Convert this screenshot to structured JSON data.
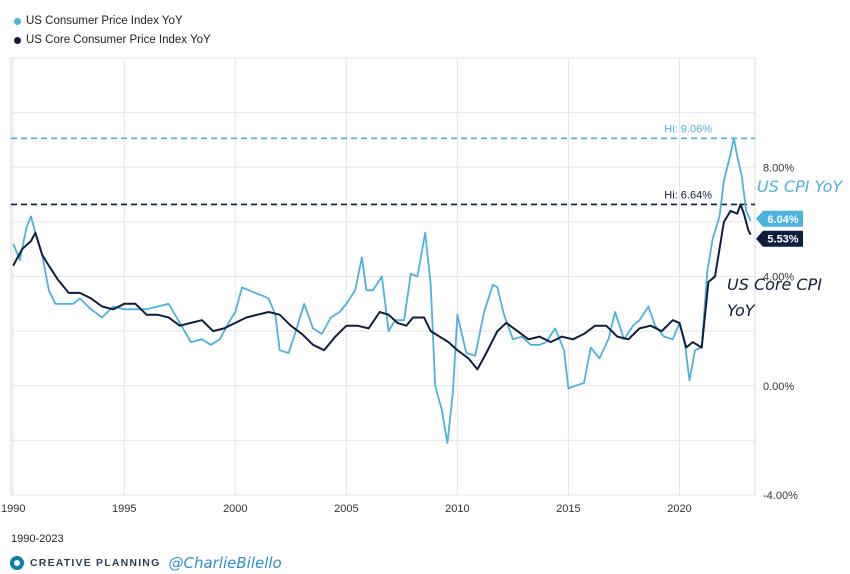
{
  "legend": {
    "cpi_label": "US Consumer Price Index YoY",
    "core_label": "US Core Consumer Price Index YoY"
  },
  "colors": {
    "cpi": "#4cb3de",
    "core": "#0f1f3d",
    "grid": "#e6e6e6",
    "axis_text": "#333333"
  },
  "range_label": "1990-2023",
  "footer": {
    "brand": "CREATIVE PLANNING",
    "handle": "@CharlieBilello"
  },
  "chart_data": {
    "type": "line",
    "title": "",
    "xlabel": "",
    "ylabel": "",
    "xlim": [
      1989.9,
      2023.4
    ],
    "ylim": [
      -4,
      12
    ],
    "x_ticks": [
      1990,
      1995,
      2000,
      2005,
      2010,
      2015,
      2020
    ],
    "y_ticks": [
      {
        "value": -4,
        "label": "-4.00%"
      },
      {
        "value": 0,
        "label": "0.00%"
      },
      {
        "value": 4,
        "label": "4.00%"
      },
      {
        "value": 8,
        "label": "8.00%"
      }
    ],
    "series": [
      {
        "name": "US Consumer Price Index YoY",
        "x": [
          1990.0,
          1990.3,
          1990.6,
          1990.8,
          1991.0,
          1991.3,
          1991.6,
          1991.9,
          1992.3,
          1992.7,
          1993.0,
          1993.5,
          1994.0,
          1994.5,
          1995.0,
          1995.5,
          1996.0,
          1996.5,
          1997.0,
          1997.5,
          1998.0,
          1998.5,
          1998.9,
          1999.3,
          1999.7,
          2000.0,
          2000.3,
          2000.6,
          2000.9,
          2001.2,
          2001.5,
          2001.8,
          2002.0,
          2002.4,
          2002.8,
          2003.1,
          2003.5,
          2003.9,
          2004.3,
          2004.7,
          2005.0,
          2005.4,
          2005.7,
          2005.9,
          2006.2,
          2006.6,
          2006.9,
          2007.2,
          2007.6,
          2007.9,
          2008.2,
          2008.55,
          2008.8,
          2009.0,
          2009.3,
          2009.55,
          2009.8,
          2010.0,
          2010.4,
          2010.8,
          2011.2,
          2011.6,
          2011.8,
          2012.1,
          2012.5,
          2012.9,
          2013.3,
          2013.7,
          2014.0,
          2014.4,
          2014.8,
          2015.0,
          2015.3,
          2015.7,
          2016.0,
          2016.4,
          2016.8,
          2017.1,
          2017.5,
          2017.9,
          2018.2,
          2018.6,
          2018.9,
          2019.3,
          2019.7,
          2020.0,
          2020.25,
          2020.45,
          2020.7,
          2021.0,
          2021.25,
          2021.5,
          2021.8,
          2022.0,
          2022.3,
          2022.45,
          2022.6,
          2022.8,
          2023.0,
          2023.2
        ],
        "values": [
          5.2,
          4.6,
          5.8,
          6.2,
          5.6,
          4.8,
          3.5,
          3.0,
          3.0,
          3.0,
          3.2,
          2.8,
          2.5,
          2.9,
          2.8,
          2.8,
          2.8,
          2.9,
          3.0,
          2.3,
          1.6,
          1.7,
          1.5,
          1.7,
          2.3,
          2.7,
          3.6,
          3.5,
          3.4,
          3.3,
          3.2,
          2.6,
          1.3,
          1.2,
          2.2,
          3.0,
          2.1,
          1.9,
          2.5,
          2.7,
          3.0,
          3.5,
          4.7,
          3.5,
          3.5,
          4.0,
          2.0,
          2.4,
          2.4,
          4.1,
          4.0,
          5.6,
          3.7,
          0.0,
          -0.9,
          -2.1,
          -0.2,
          2.6,
          1.2,
          1.1,
          2.7,
          3.7,
          3.6,
          2.6,
          1.7,
          1.8,
          1.5,
          1.5,
          1.6,
          2.1,
          1.3,
          -0.1,
          0.0,
          0.1,
          1.4,
          1.0,
          1.7,
          2.7,
          1.7,
          2.2,
          2.4,
          2.9,
          2.2,
          1.8,
          1.7,
          2.3,
          1.5,
          0.2,
          1.3,
          1.4,
          4.2,
          5.4,
          6.2,
          7.5,
          8.5,
          9.06,
          8.4,
          7.7,
          6.4,
          6.04
        ]
      },
      {
        "name": "US Core Consumer Price Index YoY",
        "x": [
          1990.0,
          1990.4,
          1990.8,
          1991.0,
          1991.3,
          1991.6,
          1992.0,
          1992.5,
          1993.0,
          1993.5,
          1994.0,
          1994.5,
          1995.0,
          1995.5,
          1996.0,
          1996.5,
          1997.0,
          1997.5,
          1998.0,
          1998.5,
          1999.0,
          1999.5,
          2000.0,
          2000.5,
          2001.0,
          2001.5,
          2002.0,
          2002.5,
          2003.0,
          2003.5,
          2004.0,
          2004.5,
          2005.0,
          2005.5,
          2006.0,
          2006.5,
          2006.9,
          2007.3,
          2007.7,
          2008.0,
          2008.5,
          2008.8,
          2009.2,
          2009.6,
          2010.0,
          2010.5,
          2010.9,
          2011.3,
          2011.8,
          2012.2,
          2012.7,
          2013.2,
          2013.7,
          2014.2,
          2014.7,
          2015.2,
          2015.7,
          2016.2,
          2016.7,
          2017.2,
          2017.7,
          2018.2,
          2018.7,
          2019.2,
          2019.7,
          2020.0,
          2020.3,
          2020.6,
          2021.0,
          2021.3,
          2021.6,
          2022.0,
          2022.3,
          2022.6,
          2022.75,
          2022.9,
          2023.1,
          2023.2
        ],
        "values": [
          4.4,
          5.0,
          5.3,
          5.6,
          4.8,
          4.4,
          3.9,
          3.4,
          3.4,
          3.2,
          2.9,
          2.8,
          3.0,
          3.0,
          2.6,
          2.6,
          2.5,
          2.2,
          2.3,
          2.4,
          2.0,
          2.1,
          2.3,
          2.5,
          2.6,
          2.7,
          2.6,
          2.2,
          1.9,
          1.5,
          1.3,
          1.8,
          2.2,
          2.2,
          2.1,
          2.7,
          2.6,
          2.3,
          2.2,
          2.5,
          2.5,
          2.0,
          1.8,
          1.6,
          1.3,
          1.0,
          0.6,
          1.2,
          2.0,
          2.3,
          2.0,
          1.7,
          1.8,
          1.6,
          1.8,
          1.7,
          1.9,
          2.2,
          2.2,
          1.8,
          1.7,
          2.1,
          2.2,
          2.0,
          2.4,
          2.3,
          1.4,
          1.6,
          1.4,
          3.8,
          4.0,
          6.0,
          6.4,
          6.3,
          6.64,
          6.3,
          5.7,
          5.53
        ]
      }
    ],
    "reference_lines": [
      {
        "series": "US Consumer Price Index YoY",
        "value": 9.06,
        "label": "Hi: 9.06%"
      },
      {
        "series": "US Core Consumer Price Index YoY",
        "value": 6.64,
        "label": "Hi: 6.64%"
      }
    ],
    "last_values": [
      {
        "series": "US Consumer Price Index YoY",
        "value": 6.04,
        "label": "6.04%"
      },
      {
        "series": "US Core Consumer Price Index YoY",
        "value": 5.53,
        "label": "5.53%"
      }
    ],
    "annotations": {
      "cpi": "US CPI YoY",
      "core_line1": "US Core CPI",
      "core_line2": "YoY"
    }
  }
}
